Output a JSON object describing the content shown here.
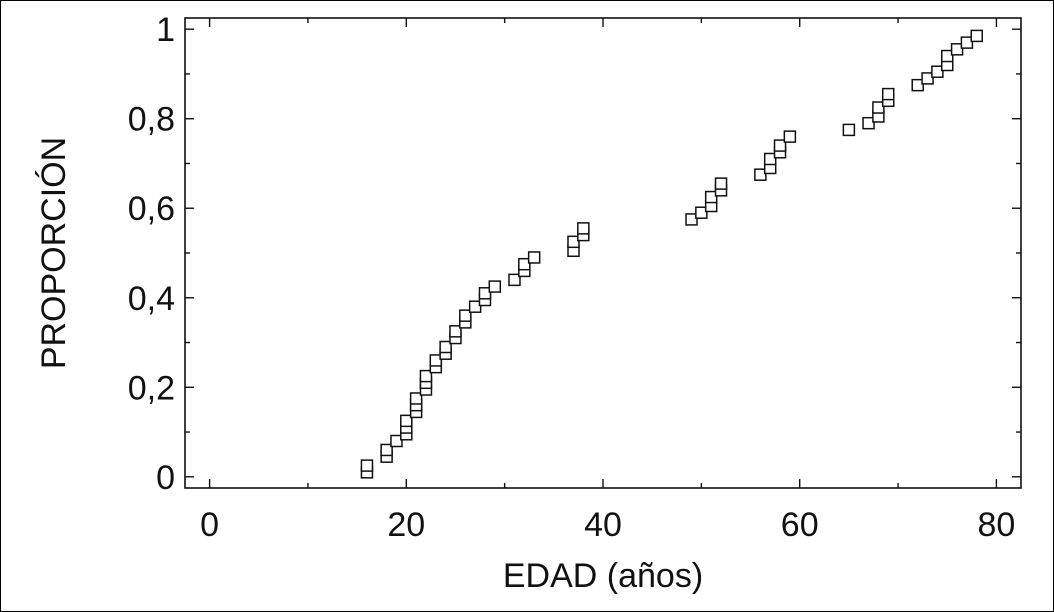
{
  "chart_data": {
    "type": "scatter",
    "title": "",
    "xlabel": "EDAD (años)",
    "ylabel": "PROPORCIÓN",
    "xlim": [
      -2.5,
      82.5
    ],
    "ylim": [
      -0.025,
      1.025
    ],
    "x_ticks": [
      0,
      20,
      40,
      60,
      80
    ],
    "x_tick_labels": [
      "0",
      "20",
      "40",
      "60",
      "80"
    ],
    "y_ticks": [
      0,
      0.2,
      0.4,
      0.6,
      0.8,
      1
    ],
    "y_tick_labels": [
      "0",
      "0,2",
      "0,4",
      "0,6",
      "0,8",
      "1"
    ],
    "grid": false,
    "marker": "open-square",
    "series": [
      {
        "points": [
          [
            16,
            0.01
          ],
          [
            16,
            0.025
          ],
          [
            18,
            0.045
          ],
          [
            18,
            0.06
          ],
          [
            19,
            0.08
          ],
          [
            20,
            0.095
          ],
          [
            20,
            0.11
          ],
          [
            20,
            0.125
          ],
          [
            21,
            0.145
          ],
          [
            21,
            0.16
          ],
          [
            21,
            0.175
          ],
          [
            22,
            0.195
          ],
          [
            22,
            0.21
          ],
          [
            22,
            0.225
          ],
          [
            23,
            0.245
          ],
          [
            23,
            0.26
          ],
          [
            24,
            0.275
          ],
          [
            24,
            0.29
          ],
          [
            25,
            0.31
          ],
          [
            25,
            0.325
          ],
          [
            26,
            0.345
          ],
          [
            26,
            0.36
          ],
          [
            27,
            0.38
          ],
          [
            28,
            0.395
          ],
          [
            28,
            0.41
          ],
          [
            29,
            0.425
          ],
          [
            31,
            0.44
          ],
          [
            32,
            0.46
          ],
          [
            32,
            0.475
          ],
          [
            33,
            0.49
          ],
          [
            37,
            0.505
          ],
          [
            37,
            0.525
          ],
          [
            38,
            0.54
          ],
          [
            38,
            0.555
          ],
          [
            49,
            0.575
          ],
          [
            50,
            0.59
          ],
          [
            51,
            0.605
          ],
          [
            51,
            0.625
          ],
          [
            52,
            0.64
          ],
          [
            52,
            0.655
          ],
          [
            56,
            0.675
          ],
          [
            57,
            0.69
          ],
          [
            57,
            0.71
          ],
          [
            58,
            0.725
          ],
          [
            58,
            0.74
          ],
          [
            59,
            0.76
          ],
          [
            65,
            0.775
          ],
          [
            67,
            0.79
          ],
          [
            68,
            0.805
          ],
          [
            68,
            0.825
          ],
          [
            69,
            0.84
          ],
          [
            69,
            0.855
          ],
          [
            72,
            0.875
          ],
          [
            73,
            0.89
          ],
          [
            74,
            0.905
          ],
          [
            75,
            0.92
          ],
          [
            75,
            0.94
          ],
          [
            76,
            0.955
          ],
          [
            77,
            0.97
          ],
          [
            78,
            0.985
          ]
        ]
      }
    ]
  }
}
